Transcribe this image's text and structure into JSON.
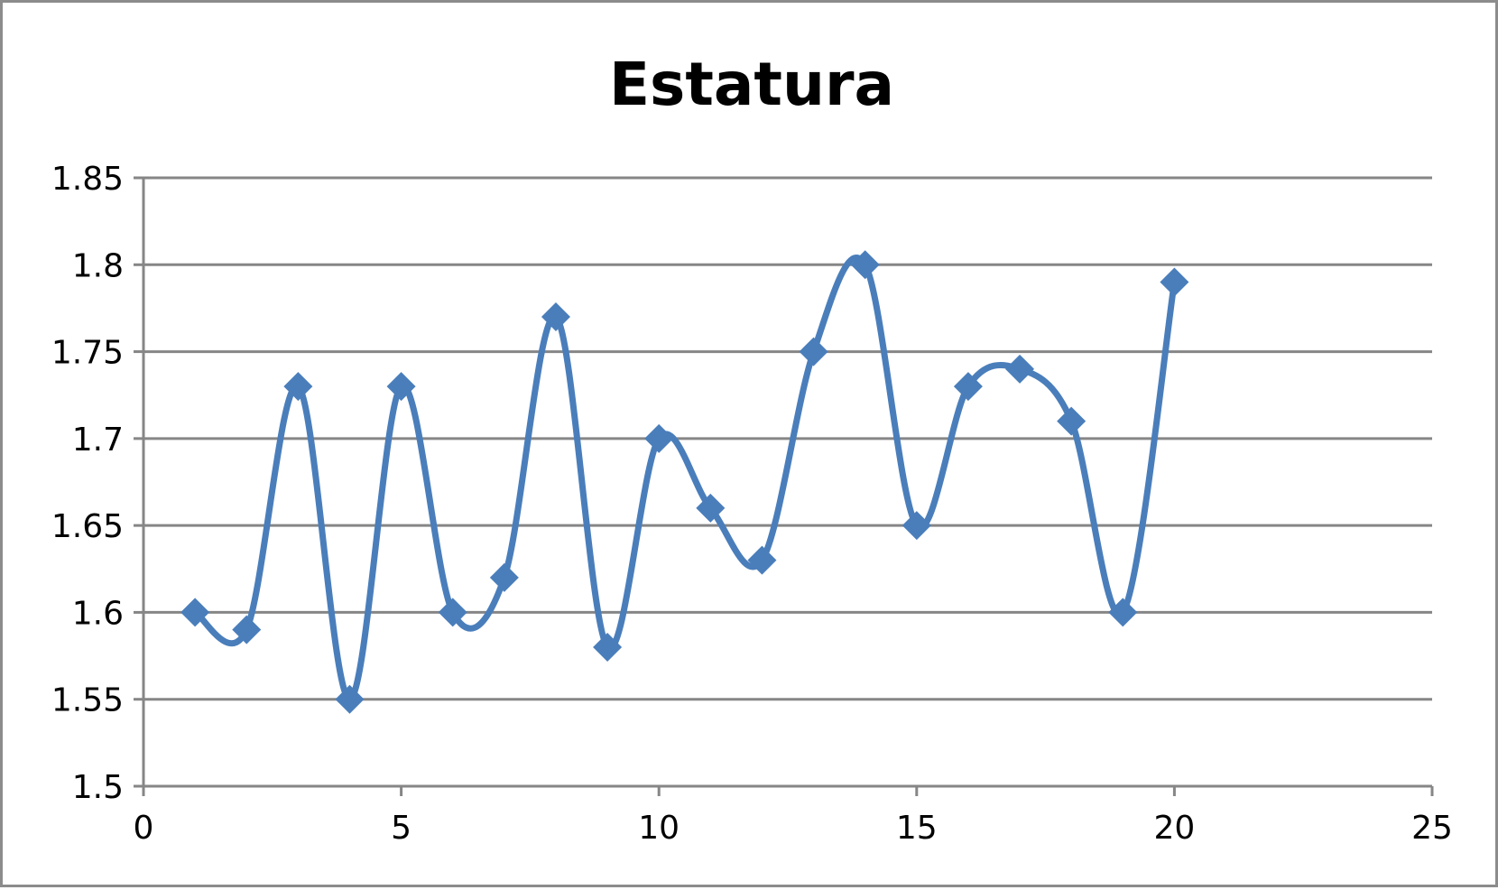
{
  "chart_data": {
    "type": "scatter",
    "title": "Estatura",
    "xlabel": "",
    "ylabel": "",
    "xlim": [
      0,
      25
    ],
    "ylim": [
      1.5,
      1.85
    ],
    "x_ticks": [
      0,
      5,
      10,
      15,
      20,
      25
    ],
    "y_ticks": [
      1.5,
      1.55,
      1.6,
      1.65,
      1.7,
      1.75,
      1.8,
      1.85
    ],
    "x_tick_labels": [
      "0",
      "5",
      "10",
      "15",
      "20",
      "25"
    ],
    "y_tick_labels": [
      "1.5",
      "1.55",
      "1.6",
      "1.65",
      "1.7",
      "1.75",
      "1.8",
      "1.85"
    ],
    "grid": "horizontal",
    "legend": "none",
    "line_style": "smoothed",
    "marker": "diamond",
    "series": [
      {
        "color": "#4a7ebb",
        "x": [
          1,
          2,
          3,
          4,
          5,
          6,
          7,
          8,
          9,
          10,
          11,
          12,
          13,
          14,
          15,
          16,
          17,
          18,
          19,
          20
        ],
        "y": [
          1.6,
          1.59,
          1.73,
          1.55,
          1.73,
          1.6,
          1.62,
          1.77,
          1.58,
          1.7,
          1.66,
          1.63,
          1.75,
          1.8,
          1.65,
          1.73,
          1.74,
          1.71,
          1.6,
          1.79
        ]
      }
    ]
  }
}
